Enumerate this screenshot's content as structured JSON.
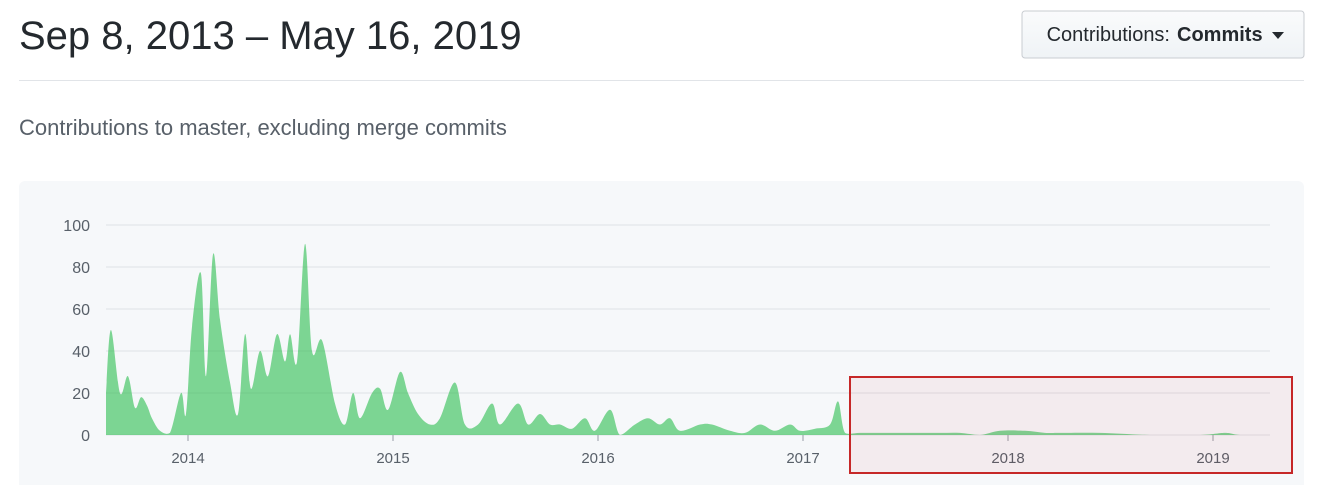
{
  "header": {
    "title": "Sep 8, 2013 – May 16, 2019",
    "button": {
      "label": "Contributions:",
      "value": "Commits"
    }
  },
  "subtitle": "Contributions to master, excluding merge commits",
  "chart_data": {
    "type": "area",
    "color": "#2cbe4e",
    "grid": true,
    "xlim": [
      2013.6,
      2019.278
    ],
    "ylim": [
      0,
      100
    ],
    "xticks": [
      2014,
      2015,
      2016,
      2017,
      2018,
      2019
    ],
    "yticks": [
      0,
      20,
      40,
      60,
      80,
      100
    ],
    "x": [
      2013.6,
      2013.624,
      2013.668,
      2013.707,
      2013.741,
      2013.771,
      2013.8,
      2013.824,
      2013.863,
      2013.912,
      2013.966,
      2013.99,
      2014.02,
      2014.063,
      2014.088,
      2014.122,
      2014.156,
      2014.205,
      2014.244,
      2014.278,
      2014.307,
      2014.351,
      2014.39,
      2014.434,
      2014.473,
      2014.498,
      2014.532,
      2014.571,
      2014.605,
      2014.654,
      2014.717,
      2014.766,
      2014.805,
      2014.839,
      2014.898,
      2014.937,
      2014.976,
      2015.034,
      2015.073,
      2015.122,
      2015.18,
      2015.229,
      2015.302,
      2015.351,
      2015.415,
      2015.483,
      2015.522,
      2015.61,
      2015.659,
      2015.717,
      2015.766,
      2015.815,
      2015.873,
      2015.937,
      2015.985,
      2016.059,
      2016.107,
      2016.18,
      2016.244,
      2016.302,
      2016.351,
      2016.4,
      2016.498,
      2016.556,
      2016.644,
      2016.717,
      2016.79,
      2016.863,
      2016.937,
      2016.985,
      2017.059,
      2017.132,
      2017.171,
      2017.205,
      2017.278,
      2017.376,
      2017.473,
      2017.571,
      2017.668,
      2017.766,
      2017.863,
      2017.961,
      2018.083,
      2018.18,
      2018.254,
      2018.449,
      2018.693,
      2018.937,
      2019.059,
      2019.132,
      2019.278
    ],
    "values": [
      20,
      50,
      20,
      28,
      13,
      18,
      14,
      8,
      2,
      1,
      20,
      10,
      52,
      77,
      28,
      86,
      55,
      25,
      10,
      48,
      22,
      40,
      28,
      48,
      35,
      48,
      35,
      91,
      40,
      45,
      15,
      5,
      20,
      8,
      20,
      22,
      12,
      30,
      20,
      10,
      5,
      8,
      25,
      5,
      5,
      15,
      5,
      15,
      5,
      10,
      5,
      5,
      3,
      8,
      2,
      12,
      0,
      5,
      8,
      5,
      8,
      2,
      5,
      5,
      2,
      1,
      5,
      2,
      5,
      2,
      3,
      5,
      16,
      1,
      1,
      1,
      1,
      1,
      1,
      1,
      0,
      2,
      2,
      1,
      1,
      1,
      0,
      0,
      1,
      0,
      0
    ]
  }
}
